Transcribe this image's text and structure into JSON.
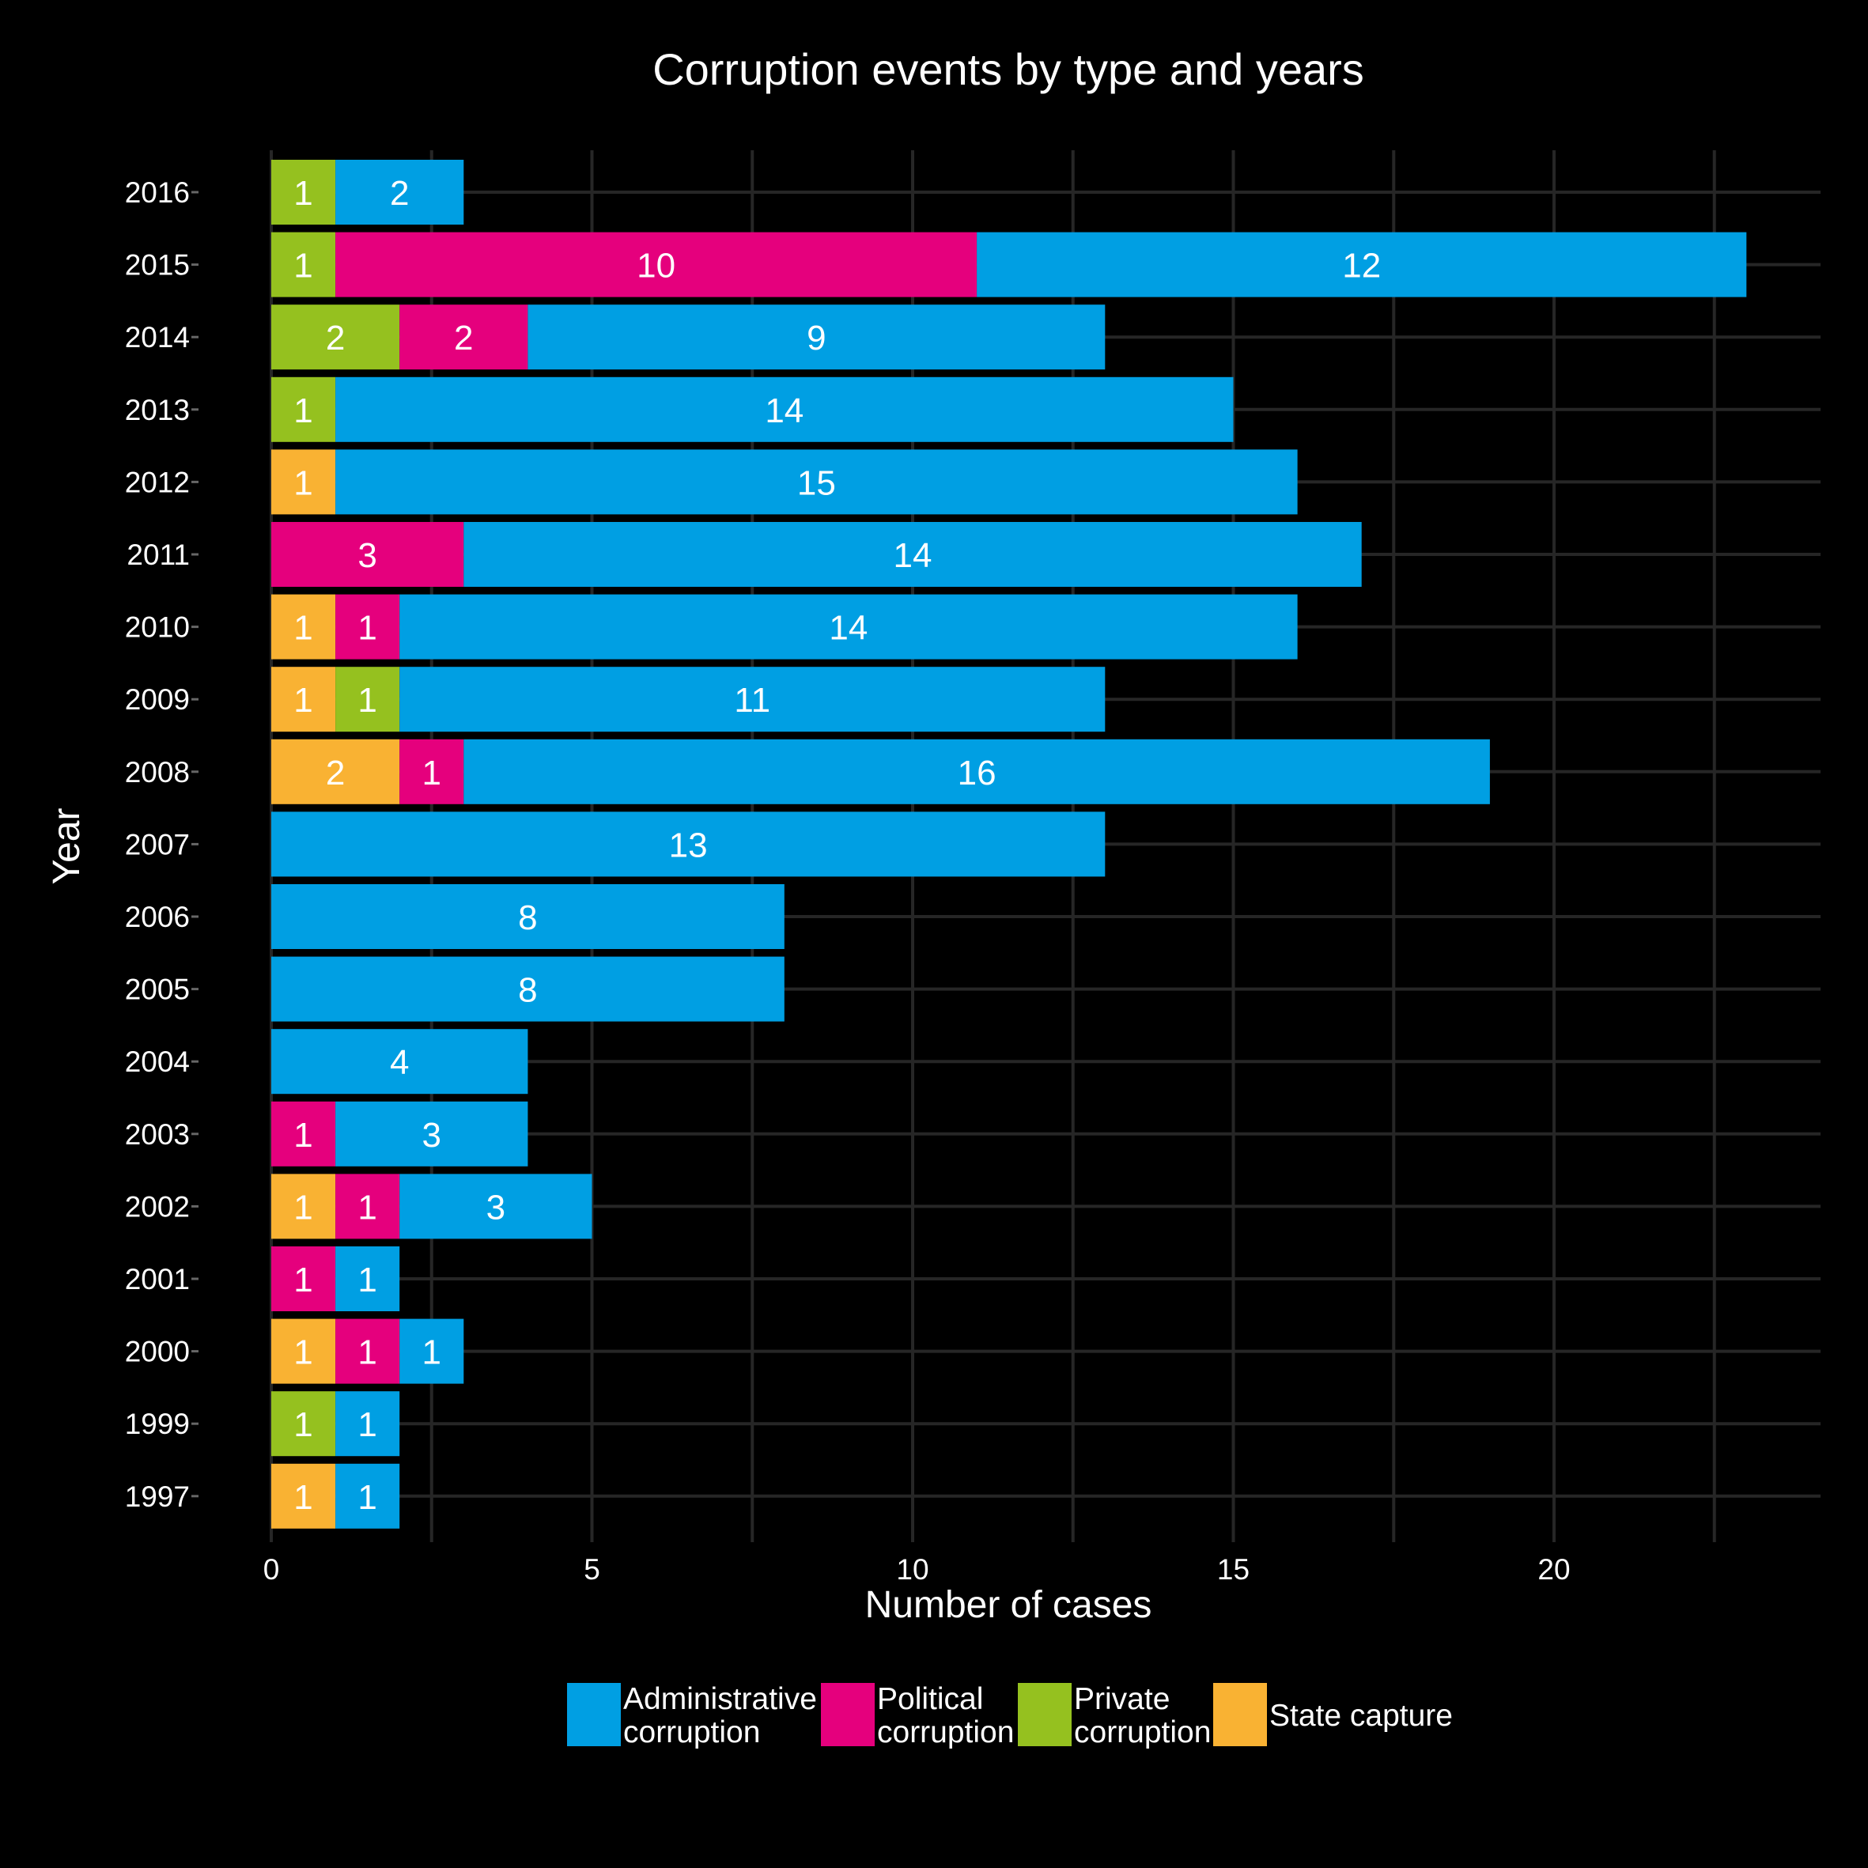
{
  "chart_data": {
    "type": "bar",
    "orientation": "horizontal",
    "stacked": true,
    "title": "Corruption events by type and years",
    "xlabel": "Number of cases",
    "ylabel": "Year",
    "xlim": [
      0,
      24.2
    ],
    "xticks": [
      0,
      5,
      10,
      15,
      20
    ],
    "grid": true,
    "legend_position": "bottom",
    "categories": [
      "2016",
      "2015",
      "2014",
      "2013",
      "2012",
      "2011",
      "2010",
      "2009",
      "2008",
      "2007",
      "2006",
      "2005",
      "2004",
      "2003",
      "2002",
      "2001",
      "2000",
      "1999",
      "1997"
    ],
    "stack_order": [
      "State capture",
      "Private corruption",
      "Political corruption",
      "Administrative corruption"
    ],
    "series": [
      {
        "name": "Administrative corruption",
        "legend_lines": [
          "Administrative",
          "corruption"
        ],
        "color": "#009FE3",
        "values": [
          2,
          12,
          9,
          14,
          15,
          14,
          14,
          11,
          16,
          13,
          8,
          8,
          4,
          3,
          3,
          1,
          1,
          1,
          1
        ]
      },
      {
        "name": "Political corruption",
        "legend_lines": [
          "Political",
          "corruption"
        ],
        "color": "#E5007D",
        "values": [
          0,
          10,
          2,
          0,
          0,
          3,
          1,
          0,
          1,
          0,
          0,
          0,
          0,
          1,
          1,
          1,
          1,
          0,
          0
        ]
      },
      {
        "name": "Private corruption",
        "legend_lines": [
          "Private",
          "corruption"
        ],
        "color": "#95C11F",
        "values": [
          1,
          1,
          2,
          1,
          0,
          0,
          0,
          1,
          0,
          0,
          0,
          0,
          0,
          0,
          0,
          0,
          0,
          1,
          0
        ]
      },
      {
        "name": "State capture",
        "legend_lines": [
          "State capture"
        ],
        "color": "#F9B233",
        "values": [
          0,
          0,
          0,
          0,
          1,
          0,
          1,
          1,
          2,
          0,
          0,
          0,
          0,
          0,
          1,
          0,
          1,
          0,
          1
        ]
      }
    ],
    "colors": {
      "background": "#000000",
      "grid": "#262626",
      "text": "#FFFFFF"
    }
  }
}
